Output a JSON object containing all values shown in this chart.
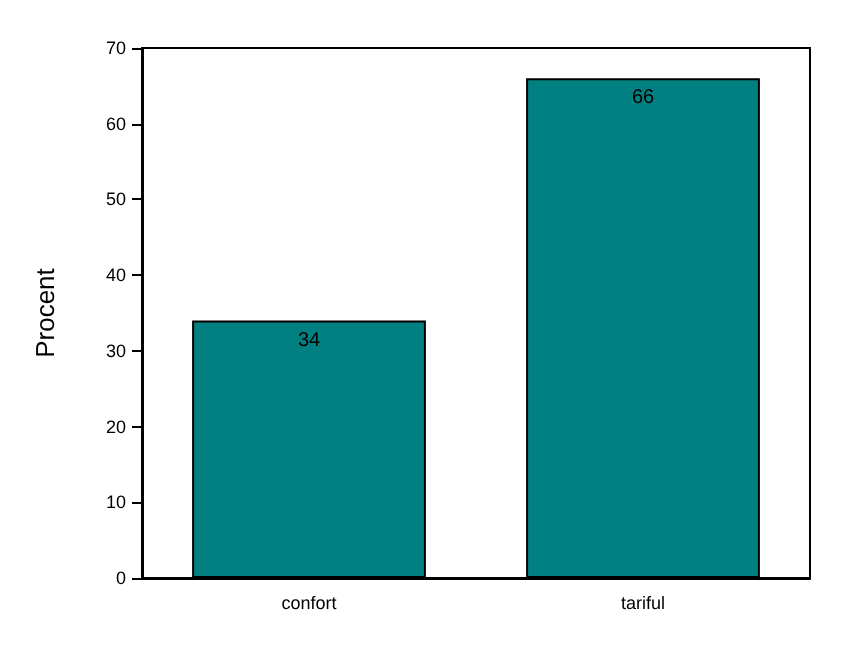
{
  "chart_data": {
    "type": "bar",
    "categories": [
      "confort",
      "tariful"
    ],
    "values": [
      34,
      66
    ],
    "color": "#008080",
    "ylabel": "Procent",
    "ylim": [
      0,
      70
    ],
    "yticks": [
      0,
      10,
      20,
      30,
      40,
      50,
      60,
      70
    ],
    "data_labels": true
  }
}
